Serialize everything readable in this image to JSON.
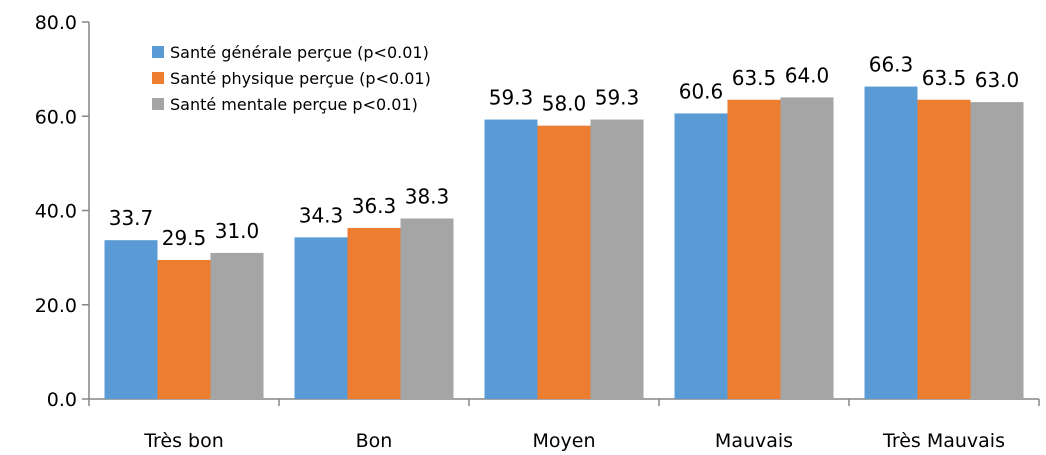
{
  "chart_data": {
    "type": "bar",
    "categories": [
      "Très bon",
      "Bon",
      "Moyen",
      "Mauvais",
      "Très Mauvais"
    ],
    "series": [
      {
        "name": "Santé générale perçue (p<0.01)",
        "color": "#5B9BD5",
        "values": [
          33.7,
          34.3,
          59.3,
          60.6,
          66.3
        ]
      },
      {
        "name": "Santé physique perçue (p<0.01)",
        "color": "#ED7D31",
        "values": [
          29.5,
          36.3,
          58.0,
          63.5,
          63.5
        ]
      },
      {
        "name": "Santé mentale perçue p<0.01)",
        "color": "#A5A5A5",
        "values": [
          31.0,
          38.3,
          59.3,
          64.0,
          63.0
        ]
      }
    ],
    "data_labels": [
      [
        "33.7",
        "34.3",
        "59.3",
        "60.6",
        "66.3"
      ],
      [
        "29.5",
        "36.3",
        "58.0",
        "63.5",
        "63.5"
      ],
      [
        "31.0",
        "38.3",
        "59.3",
        "64.0",
        "63.0"
      ]
    ],
    "y_ticks": [
      0,
      20,
      40,
      60,
      80
    ],
    "y_tick_labels": [
      "0.0",
      "20.0",
      "40.0",
      "60.0",
      "80.0"
    ],
    "ylim": [
      0,
      80
    ],
    "grid": false,
    "legend_position": "top-left",
    "title": "",
    "xlabel": "",
    "ylabel": ""
  }
}
